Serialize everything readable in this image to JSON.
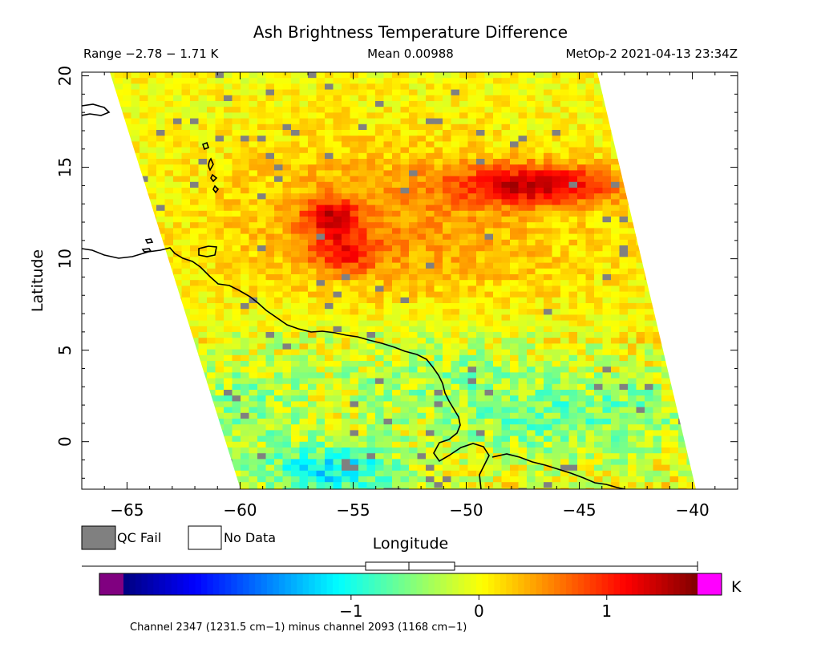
{
  "title": "Ash Brightness Temperature Difference",
  "header": {
    "range": "Range −2.78 − 1.71 K",
    "mean": "Mean 0.00988",
    "satellite_time": "MetOp-2 2021-04-13 23:34Z"
  },
  "axes": {
    "xlabel": "Longitude",
    "ylabel": "Latitude",
    "xlim": [
      -67,
      -38
    ],
    "ylim": [
      -2.6,
      20.2
    ],
    "xticks": [
      {
        "value": -65,
        "label": "−65"
      },
      {
        "value": -60,
        "label": "−60"
      },
      {
        "value": -55,
        "label": "−55"
      },
      {
        "value": -50,
        "label": "−50"
      },
      {
        "value": -45,
        "label": "−45"
      },
      {
        "value": -40,
        "label": "−40"
      }
    ],
    "yticks": [
      {
        "value": 0,
        "label": "0"
      },
      {
        "value": 5,
        "label": "5"
      },
      {
        "value": 10,
        "label": "10"
      },
      {
        "value": 15,
        "label": "15"
      },
      {
        "value": 20,
        "label": "20"
      }
    ]
  },
  "legend": {
    "qc_fail": {
      "label": "QC Fail",
      "color": "#808080"
    },
    "no_data": {
      "label": "No Data",
      "color": "#ffffff"
    }
  },
  "colorbar": {
    "unit": "K",
    "min": -2.78,
    "max": 1.71,
    "ticks": [
      {
        "value": -1,
        "label": "−1"
      },
      {
        "value": 0,
        "label": "0"
      },
      {
        "value": 1,
        "label": "1"
      }
    ],
    "under_color": "#800080",
    "over_color": "#ff00ff",
    "caption": "Channel 2347 (1231.5 cm−1) minus channel 2093 (1168 cm−1)"
  },
  "colors": {
    "coastline": "#000000",
    "qc_fail": "#808080"
  }
}
